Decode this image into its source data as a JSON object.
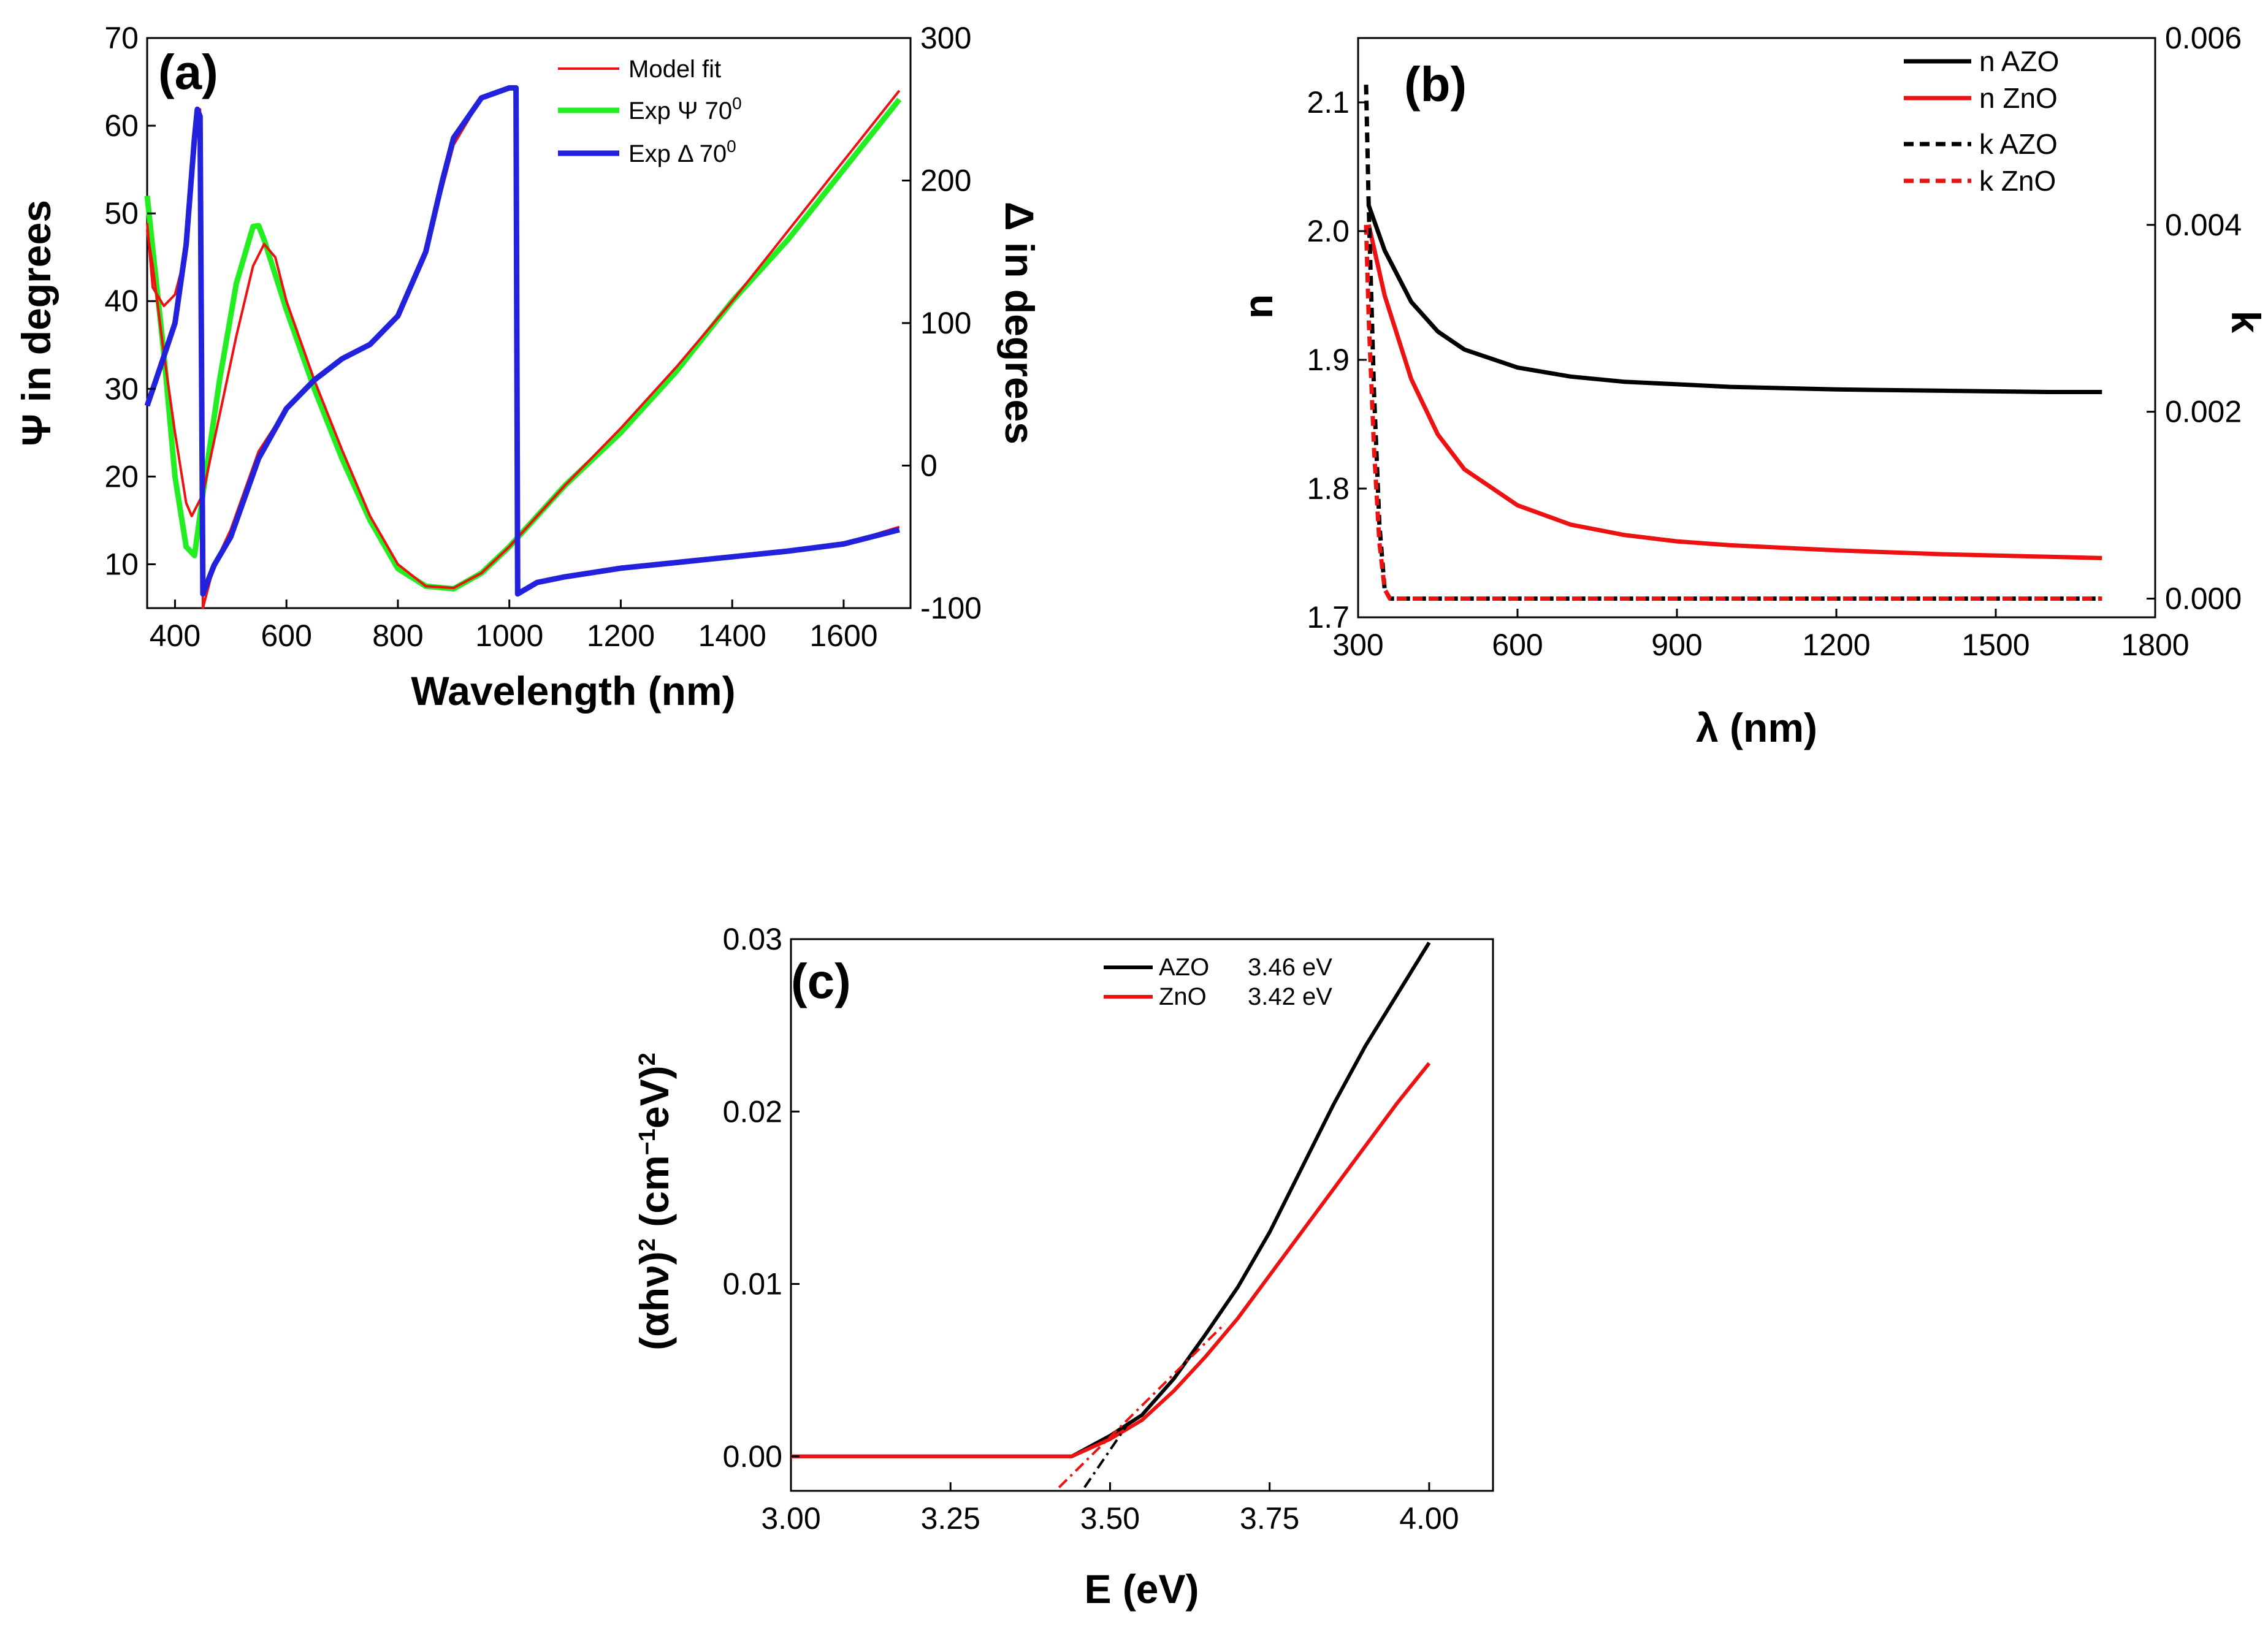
{
  "chart_data": [
    {
      "panel": "(a)",
      "type": "line",
      "xlabel": "Wavelength (nm)",
      "ylabel_left": "Ψ in degrees",
      "ylabel_right": "Δ in degrees",
      "xlim": [
        350,
        1720
      ],
      "ylim_left": [
        5,
        70
      ],
      "ylim_right": [
        -100,
        300
      ],
      "xticks": [
        "400",
        "600",
        "800",
        "1000",
        "1200",
        "1400",
        "1600"
      ],
      "yticks_left": [
        "10",
        "20",
        "30",
        "40",
        "50",
        "60",
        "70"
      ],
      "yticks_right": [
        "-100",
        "0",
        "100",
        "200",
        "300"
      ],
      "legend": [
        "Model fit",
        "Exp Ψ 70",
        "Exp Δ 70"
      ],
      "legend_superscript": "0",
      "series": [
        {
          "name": "Exp Ψ 70°",
          "color": "#22ee22",
          "axis": "left",
          "x": [
            350,
            360,
            380,
            400,
            420,
            435,
            450,
            480,
            510,
            540,
            550,
            560,
            600,
            650,
            700,
            750,
            800,
            850,
            900,
            950,
            1000,
            1050,
            1100,
            1200,
            1300,
            1400,
            1500,
            1600,
            1700
          ],
          "y": [
            52,
            46,
            34,
            20,
            12,
            11,
            18,
            31,
            42,
            48.5,
            48.6,
            47,
            39,
            30,
            22,
            15,
            9.5,
            7.5,
            7.2,
            9,
            12,
            15.5,
            19,
            25,
            32,
            40,
            47,
            55,
            63
          ]
        },
        {
          "name": "Model fit",
          "color": "#ee1111",
          "axis": "left",
          "x": [
            350,
            360,
            380,
            400,
            420,
            430,
            450,
            480,
            510,
            540,
            560,
            580,
            600,
            650,
            700,
            750,
            800,
            850,
            900,
            950,
            1000,
            1050,
            1100,
            1200,
            1300,
            1400,
            1500,
            1600,
            1700
          ],
          "y": [
            48,
            44,
            34,
            25,
            17,
            15.5,
            18,
            27,
            36,
            44,
            46.5,
            45,
            40,
            31,
            23,
            15.5,
            10,
            7.5,
            7.3,
            9,
            12,
            15.5,
            19,
            25.5,
            32.5,
            40,
            48,
            56,
            64
          ]
        },
        {
          "name": "Model fit (Δ)",
          "color": "#ee1111",
          "axis": "right",
          "x": [
            350,
            360,
            380,
            400,
            420,
            440,
            445,
            450,
            470,
            500,
            550,
            600,
            650,
            700,
            750,
            800,
            850,
            880,
            900,
            950,
            1000,
            1010,
            1015,
            1050,
            1100,
            1200,
            1300,
            1400,
            1500,
            1600,
            1700
          ],
          "y": [
            170,
            125,
            112,
            120,
            150,
            240,
            250,
            -100,
            -70,
            -45,
            10,
            40,
            60,
            75,
            85,
            105,
            150,
            195,
            225,
            258,
            265,
            265,
            -90,
            -82,
            -78,
            -72,
            -68,
            -64,
            -60,
            -55,
            -43
          ]
        },
        {
          "name": "Exp Δ 70°",
          "color": "#2222dd",
          "axis": "right",
          "x": [
            350,
            370,
            400,
            420,
            435,
            440,
            445,
            450,
            470,
            500,
            550,
            600,
            650,
            700,
            750,
            800,
            850,
            880,
            900,
            950,
            1000,
            1012,
            1015,
            1050,
            1100,
            1200,
            1300,
            1400,
            1500,
            1600,
            1700
          ],
          "y": [
            42,
            65,
            100,
            155,
            230,
            250,
            245,
            -90,
            -70,
            -50,
            5,
            40,
            60,
            75,
            85,
            105,
            150,
            200,
            230,
            258,
            265,
            265,
            -90,
            -82,
            -78,
            -72,
            -68,
            -64,
            -60,
            -55,
            -45
          ]
        }
      ]
    },
    {
      "panel": "(b)",
      "type": "line",
      "xlabel": "λ (nm)",
      "ylabel_left": "n",
      "ylabel_right": "k",
      "xlim": [
        300,
        1800
      ],
      "ylim_left": [
        1.7,
        2.15
      ],
      "ylim_right": [
        -0.0002,
        0.006
      ],
      "xticks": [
        "300",
        "600",
        "900",
        "1200",
        "1500",
        "1800"
      ],
      "yticks_left": [
        "1.7",
        "1.8",
        "1.9",
        "2.0",
        "2.1"
      ],
      "yticks_right": [
        "0.000",
        "0.002",
        "0.004",
        "0.006"
      ],
      "legend": [
        "n AZO",
        "n ZnO",
        "k AZO",
        "k ZnO"
      ],
      "series": [
        {
          "name": "n AZO",
          "color": "#000000",
          "axis": "left",
          "dash": false,
          "x": [
            320,
            350,
            400,
            450,
            500,
            600,
            700,
            800,
            900,
            1000,
            1200,
            1400,
            1600,
            1700
          ],
          "y": [
            2.02,
            1.985,
            1.945,
            1.922,
            1.908,
            1.894,
            1.887,
            1.883,
            1.881,
            1.879,
            1.877,
            1.876,
            1.875,
            1.875
          ]
        },
        {
          "name": "n ZnO",
          "color": "#ee1111",
          "axis": "left",
          "dash": false,
          "x": [
            320,
            350,
            400,
            450,
            500,
            600,
            700,
            800,
            900,
            1000,
            1200,
            1400,
            1600,
            1700
          ],
          "y": [
            2.005,
            1.95,
            1.885,
            1.842,
            1.815,
            1.787,
            1.772,
            1.764,
            1.759,
            1.756,
            1.752,
            1.749,
            1.747,
            1.746
          ]
        },
        {
          "name": "k AZO",
          "color": "#000000",
          "axis": "right",
          "dash": true,
          "x": [
            315,
            320,
            330,
            340,
            350,
            360,
            400,
            600,
            900,
            1200,
            1500,
            1700
          ],
          "y": [
            0.0055,
            0.0042,
            0.0022,
            0.0008,
            0.0001,
            0.0,
            0.0,
            0.0,
            0.0,
            0.0,
            0.0,
            0.0
          ]
        },
        {
          "name": "k ZnO",
          "color": "#ee1111",
          "axis": "right",
          "dash": true,
          "x": [
            315,
            320,
            330,
            340,
            350,
            360,
            400,
            600,
            900,
            1200,
            1500,
            1700
          ],
          "y": [
            0.004,
            0.003,
            0.0016,
            0.0006,
            0.0001,
            0.0,
            0.0,
            0.0,
            0.0,
            0.0,
            0.0,
            0.0
          ]
        }
      ]
    },
    {
      "panel": "(c)",
      "type": "line",
      "xlabel": "E (eV)",
      "ylabel": "(αhν)",
      "ylabel_sup1": "2",
      "ylabel_mid": " (cm",
      "ylabel_sup2": "−1",
      "ylabel_tail": "eV)",
      "ylabel_sup3": "2",
      "xlim": [
        3.0,
        4.1
      ],
      "ylim": [
        -0.002,
        0.03
      ],
      "xticks": [
        "3.00",
        "3.25",
        "3.50",
        "3.75",
        "4.00"
      ],
      "yticks": [
        "0.00",
        "0.01",
        "0.02",
        "0.03"
      ],
      "legend": [
        "AZO",
        "ZnO"
      ],
      "legend_values": [
        "3.46 eV",
        "3.42 eV"
      ],
      "band_gap_eV": {
        "AZO": 3.46,
        "ZnO": 3.42
      },
      "series": [
        {
          "name": "AZO",
          "color": "#000000",
          "x": [
            3.0,
            3.44,
            3.5,
            3.55,
            3.6,
            3.65,
            3.7,
            3.75,
            3.8,
            3.85,
            3.9,
            3.95,
            4.0
          ],
          "y": [
            0.0,
            0.0,
            0.0012,
            0.0024,
            0.0045,
            0.0071,
            0.0098,
            0.013,
            0.0167,
            0.0204,
            0.0238,
            0.0268,
            0.0298
          ]
        },
        {
          "name": "ZnO",
          "color": "#ee1111",
          "x": [
            3.0,
            3.44,
            3.5,
            3.55,
            3.6,
            3.65,
            3.7,
            3.75,
            3.8,
            3.85,
            3.9,
            3.95,
            4.0
          ],
          "y": [
            0.0,
            0.0,
            0.001,
            0.0021,
            0.0038,
            0.0058,
            0.008,
            0.0105,
            0.013,
            0.0155,
            0.018,
            0.0205,
            0.0228
          ]
        },
        {
          "name": "AZO tangent",
          "color": "#000000",
          "dash": true,
          "x": [
            3.46,
            3.53
          ],
          "y": [
            -0.0018,
            0.002
          ]
        },
        {
          "name": "ZnO tangent",
          "color": "#ee1111",
          "dash": true,
          "x": [
            3.42,
            3.68
          ],
          "y": [
            -0.0018,
            0.0077
          ]
        }
      ]
    }
  ]
}
